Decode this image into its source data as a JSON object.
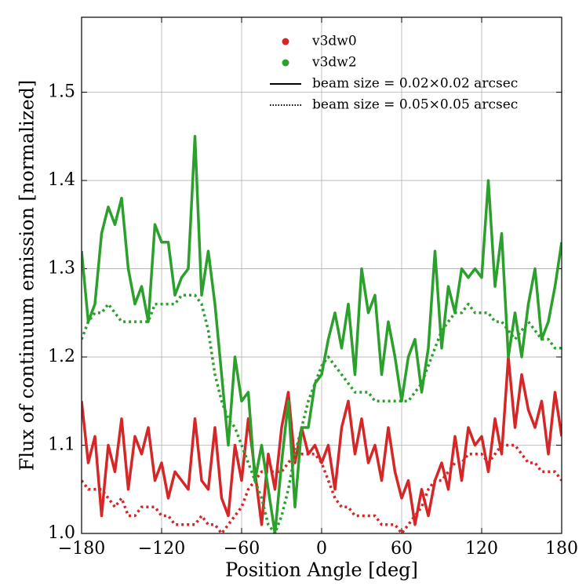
{
  "chart_data": {
    "type": "line",
    "xlabel": "Position Angle [deg]",
    "ylabel": "Flux of continuum emission [normalized]",
    "x": [
      -180,
      -175,
      -170,
      -165,
      -160,
      -155,
      -150,
      -145,
      -140,
      -135,
      -130,
      -125,
      -120,
      -115,
      -110,
      -105,
      -100,
      -95,
      -90,
      -85,
      -80,
      -75,
      -70,
      -65,
      -60,
      -55,
      -50,
      -45,
      -40,
      -35,
      -30,
      -25,
      -20,
      -15,
      -10,
      -5,
      0,
      5,
      10,
      15,
      20,
      25,
      30,
      35,
      40,
      45,
      50,
      55,
      60,
      65,
      70,
      75,
      80,
      85,
      90,
      95,
      100,
      105,
      110,
      115,
      120,
      125,
      130,
      135,
      140,
      145,
      150,
      155,
      160,
      165,
      170,
      175,
      180
    ],
    "beams": [
      {
        "label": "beam size = 0.02×0.02 arcsec",
        "dash": "solid"
      },
      {
        "label": "beam size = 0.05×0.05 arcsec",
        "dash": "dotted"
      }
    ],
    "series": [
      {
        "name": "v3dw0",
        "color": "#d62728",
        "values": [
          [
            1.15,
            1.08,
            1.11,
            1.02,
            1.1,
            1.07,
            1.13,
            1.05,
            1.11,
            1.09,
            1.12,
            1.06,
            1.08,
            1.04,
            1.07,
            1.06,
            1.05,
            1.13,
            1.06,
            1.05,
            1.12,
            1.04,
            1.02,
            1.1,
            1.06,
            1.13,
            1.07,
            1.01,
            1.09,
            1.05,
            1.12,
            1.16,
            1.08,
            1.12,
            1.09,
            1.1,
            1.08,
            1.1,
            1.05,
            1.12,
            1.15,
            1.09,
            1.13,
            1.08,
            1.1,
            1.06,
            1.12,
            1.07,
            1.04,
            1.06,
            1.01,
            1.05,
            1.02,
            1.06,
            1.08,
            1.05,
            1.11,
            1.06,
            1.12,
            1.1,
            1.11,
            1.07,
            1.13,
            1.09,
            1.2,
            1.12,
            1.18,
            1.14,
            1.12,
            1.15,
            1.09,
            1.16,
            1.11
          ],
          [
            1.06,
            1.05,
            1.05,
            1.05,
            1.04,
            1.03,
            1.04,
            1.02,
            1.02,
            1.03,
            1.03,
            1.03,
            1.02,
            1.02,
            1.01,
            1.01,
            1.01,
            1.01,
            1.02,
            1.01,
            1.01,
            1.0,
            1.01,
            1.02,
            1.03,
            1.05,
            1.06,
            1.07,
            1.07,
            1.07,
            1.07,
            1.08,
            1.09,
            1.09,
            1.09,
            1.09,
            1.08,
            1.06,
            1.04,
            1.03,
            1.03,
            1.02,
            1.02,
            1.02,
            1.02,
            1.01,
            1.01,
            1.01,
            1.0,
            1.01,
            1.02,
            1.03,
            1.05,
            1.06,
            1.06,
            1.07,
            1.08,
            1.08,
            1.09,
            1.09,
            1.09,
            1.08,
            1.09,
            1.1,
            1.1,
            1.1,
            1.09,
            1.08,
            1.08,
            1.07,
            1.07,
            1.07,
            1.06
          ]
        ]
      },
      {
        "name": "v3dw2",
        "color": "#2ca02c",
        "values": [
          [
            1.32,
            1.24,
            1.26,
            1.34,
            1.37,
            1.35,
            1.38,
            1.3,
            1.26,
            1.28,
            1.24,
            1.35,
            1.33,
            1.33,
            1.27,
            1.29,
            1.3,
            1.45,
            1.27,
            1.32,
            1.26,
            1.18,
            1.1,
            1.2,
            1.15,
            1.16,
            1.06,
            1.1,
            1.05,
            1.0,
            1.08,
            1.15,
            1.03,
            1.12,
            1.12,
            1.17,
            1.18,
            1.22,
            1.25,
            1.21,
            1.26,
            1.18,
            1.3,
            1.25,
            1.27,
            1.18,
            1.24,
            1.2,
            1.15,
            1.2,
            1.22,
            1.16,
            1.21,
            1.32,
            1.21,
            1.28,
            1.25,
            1.3,
            1.29,
            1.3,
            1.29,
            1.4,
            1.28,
            1.34,
            1.2,
            1.25,
            1.2,
            1.26,
            1.3,
            1.22,
            1.24,
            1.28,
            1.33
          ],
          [
            1.22,
            1.24,
            1.25,
            1.25,
            1.26,
            1.25,
            1.24,
            1.24,
            1.24,
            1.24,
            1.24,
            1.26,
            1.26,
            1.26,
            1.26,
            1.27,
            1.27,
            1.27,
            1.26,
            1.23,
            1.18,
            1.15,
            1.13,
            1.12,
            1.1,
            1.08,
            1.06,
            1.04,
            1.01,
            1.0,
            1.02,
            1.05,
            1.09,
            1.12,
            1.15,
            1.17,
            1.19,
            1.2,
            1.19,
            1.18,
            1.17,
            1.16,
            1.16,
            1.16,
            1.15,
            1.15,
            1.15,
            1.15,
            1.15,
            1.15,
            1.16,
            1.17,
            1.19,
            1.21,
            1.23,
            1.24,
            1.25,
            1.25,
            1.26,
            1.25,
            1.25,
            1.25,
            1.24,
            1.24,
            1.23,
            1.22,
            1.23,
            1.24,
            1.23,
            1.22,
            1.22,
            1.21,
            1.21
          ]
        ]
      }
    ],
    "xlim": [
      -180,
      180
    ],
    "ylim": [
      1.0,
      1.585
    ],
    "xticks": [
      {
        "value": -180,
        "label": "−180"
      },
      {
        "value": -120,
        "label": "−120"
      },
      {
        "value": -60,
        "label": "−60"
      },
      0,
      60,
      120,
      180
    ],
    "yticks": [
      {
        "value": 1,
        "label": "1.0"
      },
      1.1,
      1.2,
      1.3,
      1.4,
      1.5
    ],
    "grid": true
  }
}
